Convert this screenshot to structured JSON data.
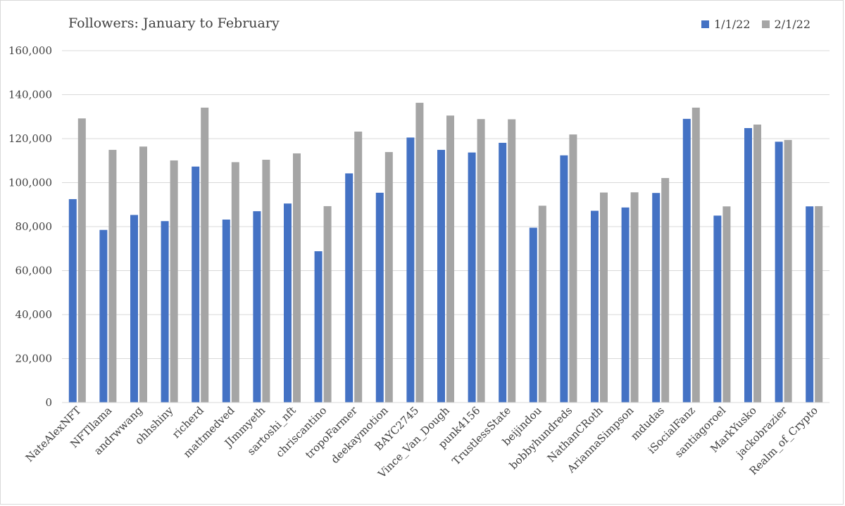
{
  "chart_data": {
    "type": "bar",
    "title": "Followers: January to February",
    "xlabel": "",
    "ylabel": "",
    "ylim": [
      0,
      160000
    ],
    "yticks": [
      0,
      20000,
      40000,
      60000,
      80000,
      100000,
      120000,
      140000,
      160000
    ],
    "ytick_labels": [
      "0",
      "20,000",
      "40,000",
      "60,000",
      "80,000",
      "100,000",
      "120,000",
      "140,000",
      "160,000"
    ],
    "grid": true,
    "legend_position": "top-right",
    "categories": [
      "NateAlexNFT",
      "NFTllama",
      "andrwwang",
      "ohhshiny",
      "richerd",
      "mattmedved",
      "JImmyeth",
      "sartoshi_nft",
      "chriscantino",
      "tropoFarmer",
      "deekaymotion",
      "BAYC2745",
      "Vince_Van_Dough",
      "punk4156",
      "TrustlessState",
      "beijindou",
      "bobbyhundreds",
      "NathanCRoth",
      "AriannaSimpson",
      "mdudas",
      "iSocialFanz",
      "santiagoroel",
      "MarkYusko",
      "jackobrazier",
      "Realm_of_Crypto"
    ],
    "series": [
      {
        "name": "1/1/22",
        "color": "#4472c4",
        "values": [
          92500,
          78500,
          85300,
          82500,
          107300,
          83200,
          87000,
          90500,
          68800,
          104200,
          95400,
          120500,
          114900,
          113700,
          118100,
          79500,
          112400,
          87200,
          88700,
          95300,
          129000,
          85000,
          124800,
          118600,
          89200
        ]
      },
      {
        "name": "2/1/22",
        "color": "#a5a5a5",
        "values": [
          129200,
          114900,
          116400,
          110100,
          134100,
          109300,
          110400,
          113300,
          89300,
          123200,
          113900,
          136300,
          130500,
          128900,
          128800,
          89500,
          121900,
          95500,
          95600,
          102100,
          134100,
          89200,
          126400,
          119400,
          89300
        ]
      }
    ]
  }
}
